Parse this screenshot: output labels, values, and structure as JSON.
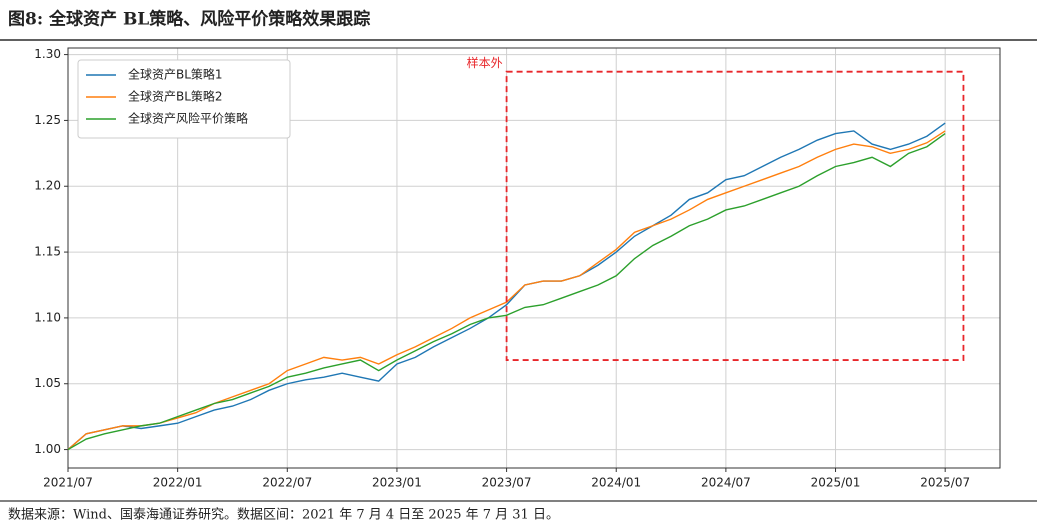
{
  "chart_data": {
    "type": "line",
    "title": "图8: 全球资产 BL策略、风险平价策略效果跟踪",
    "source": "数据来源：Wind、国泰海通证券研究。数据区间：2021 年 7 月 4 日至 2025 年 7 月 31 日。",
    "x": [
      "2021/07",
      "2021/08",
      "2021/09",
      "2021/10",
      "2021/11",
      "2021/12",
      "2022/01",
      "2022/02",
      "2022/03",
      "2022/04",
      "2022/05",
      "2022/06",
      "2022/07",
      "2022/08",
      "2022/09",
      "2022/10",
      "2022/11",
      "2022/12",
      "2023/01",
      "2023/02",
      "2023/03",
      "2023/04",
      "2023/05",
      "2023/06",
      "2023/07",
      "2023/08",
      "2023/09",
      "2023/10",
      "2023/11",
      "2023/12",
      "2024/01",
      "2024/02",
      "2024/03",
      "2024/04",
      "2024/05",
      "2024/06",
      "2024/07",
      "2024/08",
      "2024/09",
      "2024/10",
      "2024/11",
      "2024/12",
      "2025/01",
      "2025/02",
      "2025/03",
      "2025/04",
      "2025/05",
      "2025/06",
      "2025/07"
    ],
    "series": [
      {
        "name": "全球资产BL策略1",
        "color": "#1f77b4",
        "values": [
          1.0,
          1.012,
          1.015,
          1.018,
          1.016,
          1.018,
          1.02,
          1.025,
          1.03,
          1.033,
          1.038,
          1.045,
          1.05,
          1.053,
          1.055,
          1.058,
          1.055,
          1.052,
          1.065,
          1.07,
          1.078,
          1.085,
          1.092,
          1.1,
          1.11,
          1.125,
          1.128,
          1.128,
          1.132,
          1.14,
          1.15,
          1.162,
          1.17,
          1.178,
          1.19,
          1.195,
          1.205,
          1.208,
          1.215,
          1.222,
          1.228,
          1.235,
          1.24,
          1.242,
          1.232,
          1.228,
          1.232,
          1.238,
          1.248
        ]
      },
      {
        "name": "全球资产BL策略2",
        "color": "#ff7f0e",
        "values": [
          1.0,
          1.012,
          1.015,
          1.018,
          1.018,
          1.02,
          1.024,
          1.028,
          1.035,
          1.04,
          1.045,
          1.05,
          1.06,
          1.065,
          1.07,
          1.068,
          1.07,
          1.065,
          1.072,
          1.078,
          1.085,
          1.092,
          1.1,
          1.106,
          1.112,
          1.125,
          1.128,
          1.128,
          1.132,
          1.142,
          1.152,
          1.165,
          1.17,
          1.175,
          1.182,
          1.19,
          1.195,
          1.2,
          1.205,
          1.21,
          1.215,
          1.222,
          1.228,
          1.232,
          1.23,
          1.225,
          1.228,
          1.233,
          1.242
        ]
      },
      {
        "name": "全球资产风险平价策略",
        "color": "#2ca02c",
        "values": [
          1.0,
          1.008,
          1.012,
          1.015,
          1.018,
          1.02,
          1.025,
          1.03,
          1.035,
          1.038,
          1.043,
          1.048,
          1.055,
          1.058,
          1.062,
          1.065,
          1.068,
          1.06,
          1.068,
          1.075,
          1.082,
          1.088,
          1.095,
          1.1,
          1.102,
          1.108,
          1.11,
          1.115,
          1.12,
          1.125,
          1.132,
          1.145,
          1.155,
          1.162,
          1.17,
          1.175,
          1.182,
          1.185,
          1.19,
          1.195,
          1.2,
          1.208,
          1.215,
          1.218,
          1.222,
          1.215,
          1.225,
          1.23,
          1.24
        ]
      }
    ],
    "xlim": [
      "2021/07",
      "2025/10"
    ],
    "xticks": [
      "2021/07",
      "2022/01",
      "2022/07",
      "2023/01",
      "2023/07",
      "2024/01",
      "2024/07",
      "2025/01",
      "2025/07"
    ],
    "ylim": [
      0.986,
      1.305
    ],
    "yticks": [
      {
        "value": 1.0,
        "label": "1.00"
      },
      {
        "value": 1.05,
        "label": "1.05"
      },
      {
        "value": 1.1,
        "label": "1.10"
      },
      {
        "value": 1.15,
        "label": "1.15"
      },
      {
        "value": 1.2,
        "label": "1.20"
      },
      {
        "value": 1.25,
        "label": "1.25"
      },
      {
        "value": 1.3,
        "label": "1.30"
      }
    ],
    "grid": true,
    "legend": "upper left",
    "out_of_sample": {
      "label": "样本外",
      "color": "#e8262a",
      "x": [
        "2023/07",
        "2025/08"
      ],
      "y": [
        1.068,
        1.287
      ]
    }
  }
}
